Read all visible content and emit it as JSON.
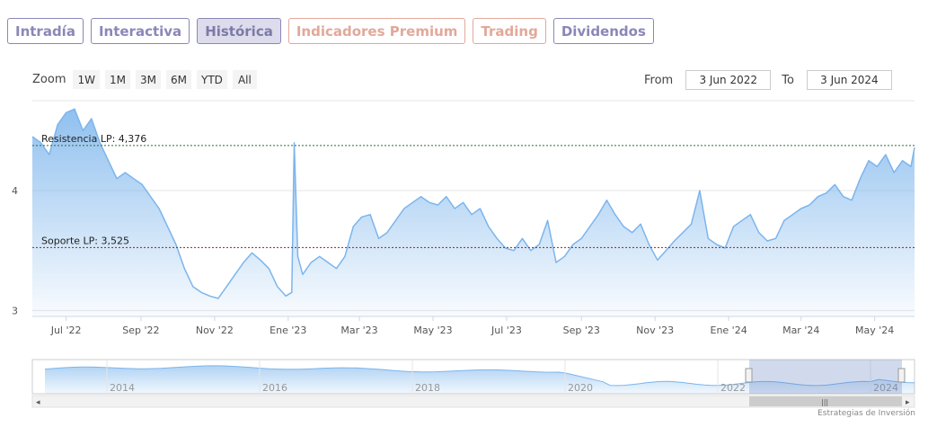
{
  "tabs": [
    {
      "label": "Intradía",
      "style": "normal"
    },
    {
      "label": "Interactiva",
      "style": "normal"
    },
    {
      "label": "Histórica",
      "style": "active"
    },
    {
      "label": "Indicadores Premium",
      "style": "premium"
    },
    {
      "label": "Trading",
      "style": "premium"
    },
    {
      "label": "Dividendos",
      "style": "normal"
    }
  ],
  "zoom": {
    "label": "Zoom",
    "buttons": [
      "1W",
      "1M",
      "3M",
      "6M",
      "YTD",
      "All"
    ]
  },
  "range": {
    "from_label": "From",
    "from_value": "3 Jun 2022",
    "to_label": "To",
    "to_value": "3 Jun 2024"
  },
  "credits": "Estrategias de Inversión",
  "chart_data": {
    "type": "area",
    "title": "",
    "xlabel": "",
    "ylabel": "",
    "x_range": [
      "2022-06-03",
      "2024-06-03"
    ],
    "ylim": [
      2.95,
      4.75
    ],
    "y_ticks": [
      3,
      4
    ],
    "x_ticks": [
      {
        "label": "Jul '22",
        "date": "2022-07-01"
      },
      {
        "label": "Sep '22",
        "date": "2022-09-01"
      },
      {
        "label": "Nov '22",
        "date": "2022-11-01"
      },
      {
        "label": "Ene '23",
        "date": "2023-01-01"
      },
      {
        "label": "Mar '23",
        "date": "2023-03-01"
      },
      {
        "label": "May '23",
        "date": "2023-05-01"
      },
      {
        "label": "Jul '23",
        "date": "2023-07-01"
      },
      {
        "label": "Sep '23",
        "date": "2023-09-01"
      },
      {
        "label": "Nov '23",
        "date": "2023-11-01"
      },
      {
        "label": "Ene '24",
        "date": "2024-01-01"
      },
      {
        "label": "Mar '24",
        "date": "2024-03-01"
      },
      {
        "label": "May '24",
        "date": "2024-05-01"
      }
    ],
    "series": [
      {
        "color": "#7cb5ec",
        "points": [
          [
            "2022-06-03",
            4.45
          ],
          [
            "2022-06-10",
            4.4
          ],
          [
            "2022-06-17",
            4.3
          ],
          [
            "2022-06-24",
            4.55
          ],
          [
            "2022-07-01",
            4.65
          ],
          [
            "2022-07-08",
            4.68
          ],
          [
            "2022-07-15",
            4.5
          ],
          [
            "2022-07-22",
            4.6
          ],
          [
            "2022-07-29",
            4.4
          ],
          [
            "2022-08-05",
            4.25
          ],
          [
            "2022-08-12",
            4.1
          ],
          [
            "2022-08-19",
            4.15
          ],
          [
            "2022-08-26",
            4.1
          ],
          [
            "2022-09-02",
            4.05
          ],
          [
            "2022-09-09",
            3.95
          ],
          [
            "2022-09-16",
            3.85
          ],
          [
            "2022-09-23",
            3.7
          ],
          [
            "2022-09-30",
            3.55
          ],
          [
            "2022-10-07",
            3.35
          ],
          [
            "2022-10-14",
            3.2
          ],
          [
            "2022-10-21",
            3.15
          ],
          [
            "2022-10-28",
            3.12
          ],
          [
            "2022-11-04",
            3.1
          ],
          [
            "2022-11-11",
            3.2
          ],
          [
            "2022-11-18",
            3.3
          ],
          [
            "2022-11-25",
            3.4
          ],
          [
            "2022-12-02",
            3.48
          ],
          [
            "2022-12-09",
            3.42
          ],
          [
            "2022-12-16",
            3.35
          ],
          [
            "2022-12-23",
            3.2
          ],
          [
            "2022-12-30",
            3.12
          ],
          [
            "2023-01-04",
            3.15
          ],
          [
            "2023-01-06",
            4.4
          ],
          [
            "2023-01-09",
            3.45
          ],
          [
            "2023-01-13",
            3.3
          ],
          [
            "2023-01-20",
            3.4
          ],
          [
            "2023-01-27",
            3.45
          ],
          [
            "2023-02-03",
            3.4
          ],
          [
            "2023-02-10",
            3.35
          ],
          [
            "2023-02-17",
            3.45
          ],
          [
            "2023-02-24",
            3.7
          ],
          [
            "2023-03-03",
            3.78
          ],
          [
            "2023-03-10",
            3.8
          ],
          [
            "2023-03-17",
            3.6
          ],
          [
            "2023-03-24",
            3.65
          ],
          [
            "2023-03-31",
            3.75
          ],
          [
            "2023-04-07",
            3.85
          ],
          [
            "2023-04-14",
            3.9
          ],
          [
            "2023-04-21",
            3.95
          ],
          [
            "2023-04-28",
            3.9
          ],
          [
            "2023-05-05",
            3.88
          ],
          [
            "2023-05-12",
            3.95
          ],
          [
            "2023-05-19",
            3.85
          ],
          [
            "2023-05-26",
            3.9
          ],
          [
            "2023-06-02",
            3.8
          ],
          [
            "2023-06-09",
            3.85
          ],
          [
            "2023-06-16",
            3.7
          ],
          [
            "2023-06-23",
            3.6
          ],
          [
            "2023-06-30",
            3.52
          ],
          [
            "2023-07-07",
            3.5
          ],
          [
            "2023-07-14",
            3.6
          ],
          [
            "2023-07-21",
            3.5
          ],
          [
            "2023-07-28",
            3.55
          ],
          [
            "2023-08-04",
            3.75
          ],
          [
            "2023-08-11",
            3.4
          ],
          [
            "2023-08-18",
            3.45
          ],
          [
            "2023-08-25",
            3.55
          ],
          [
            "2023-09-01",
            3.6
          ],
          [
            "2023-09-08",
            3.7
          ],
          [
            "2023-09-15",
            3.8
          ],
          [
            "2023-09-22",
            3.92
          ],
          [
            "2023-09-29",
            3.8
          ],
          [
            "2023-10-06",
            3.7
          ],
          [
            "2023-10-13",
            3.65
          ],
          [
            "2023-10-20",
            3.72
          ],
          [
            "2023-10-27",
            3.55
          ],
          [
            "2023-11-03",
            3.42
          ],
          [
            "2023-11-10",
            3.5
          ],
          [
            "2023-11-17",
            3.58
          ],
          [
            "2023-11-24",
            3.65
          ],
          [
            "2023-12-01",
            3.72
          ],
          [
            "2023-12-08",
            4.0
          ],
          [
            "2023-12-15",
            3.6
          ],
          [
            "2023-12-22",
            3.55
          ],
          [
            "2023-12-29",
            3.52
          ],
          [
            "2024-01-05",
            3.7
          ],
          [
            "2024-01-12",
            3.75
          ],
          [
            "2024-01-19",
            3.8
          ],
          [
            "2024-01-26",
            3.65
          ],
          [
            "2024-02-02",
            3.58
          ],
          [
            "2024-02-09",
            3.6
          ],
          [
            "2024-02-16",
            3.75
          ],
          [
            "2024-02-23",
            3.8
          ],
          [
            "2024-03-01",
            3.85
          ],
          [
            "2024-03-08",
            3.88
          ],
          [
            "2024-03-15",
            3.95
          ],
          [
            "2024-03-22",
            3.98
          ],
          [
            "2024-03-29",
            4.05
          ],
          [
            "2024-04-05",
            3.95
          ],
          [
            "2024-04-12",
            3.92
          ],
          [
            "2024-04-19",
            4.1
          ],
          [
            "2024-04-26",
            4.25
          ],
          [
            "2024-05-03",
            4.2
          ],
          [
            "2024-05-10",
            4.3
          ],
          [
            "2024-05-17",
            4.15
          ],
          [
            "2024-05-24",
            4.25
          ],
          [
            "2024-05-31",
            4.2
          ],
          [
            "2024-06-03",
            4.36
          ]
        ]
      }
    ],
    "annotations": [
      {
        "label": "Resistencia LP: 4,376",
        "value": 4.376,
        "color": "#2e6b3a"
      },
      {
        "label": "Soporte LP: 3,525",
        "value": 3.525,
        "color": "#9b1c1c"
      }
    ],
    "navigator": {
      "x_ticks": [
        "2014",
        "2016",
        "2018",
        "2020",
        "2022",
        "2024"
      ],
      "selected_range": [
        "2022-06-03",
        "2024-06-03"
      ]
    },
    "grid": true,
    "legend": "none"
  }
}
